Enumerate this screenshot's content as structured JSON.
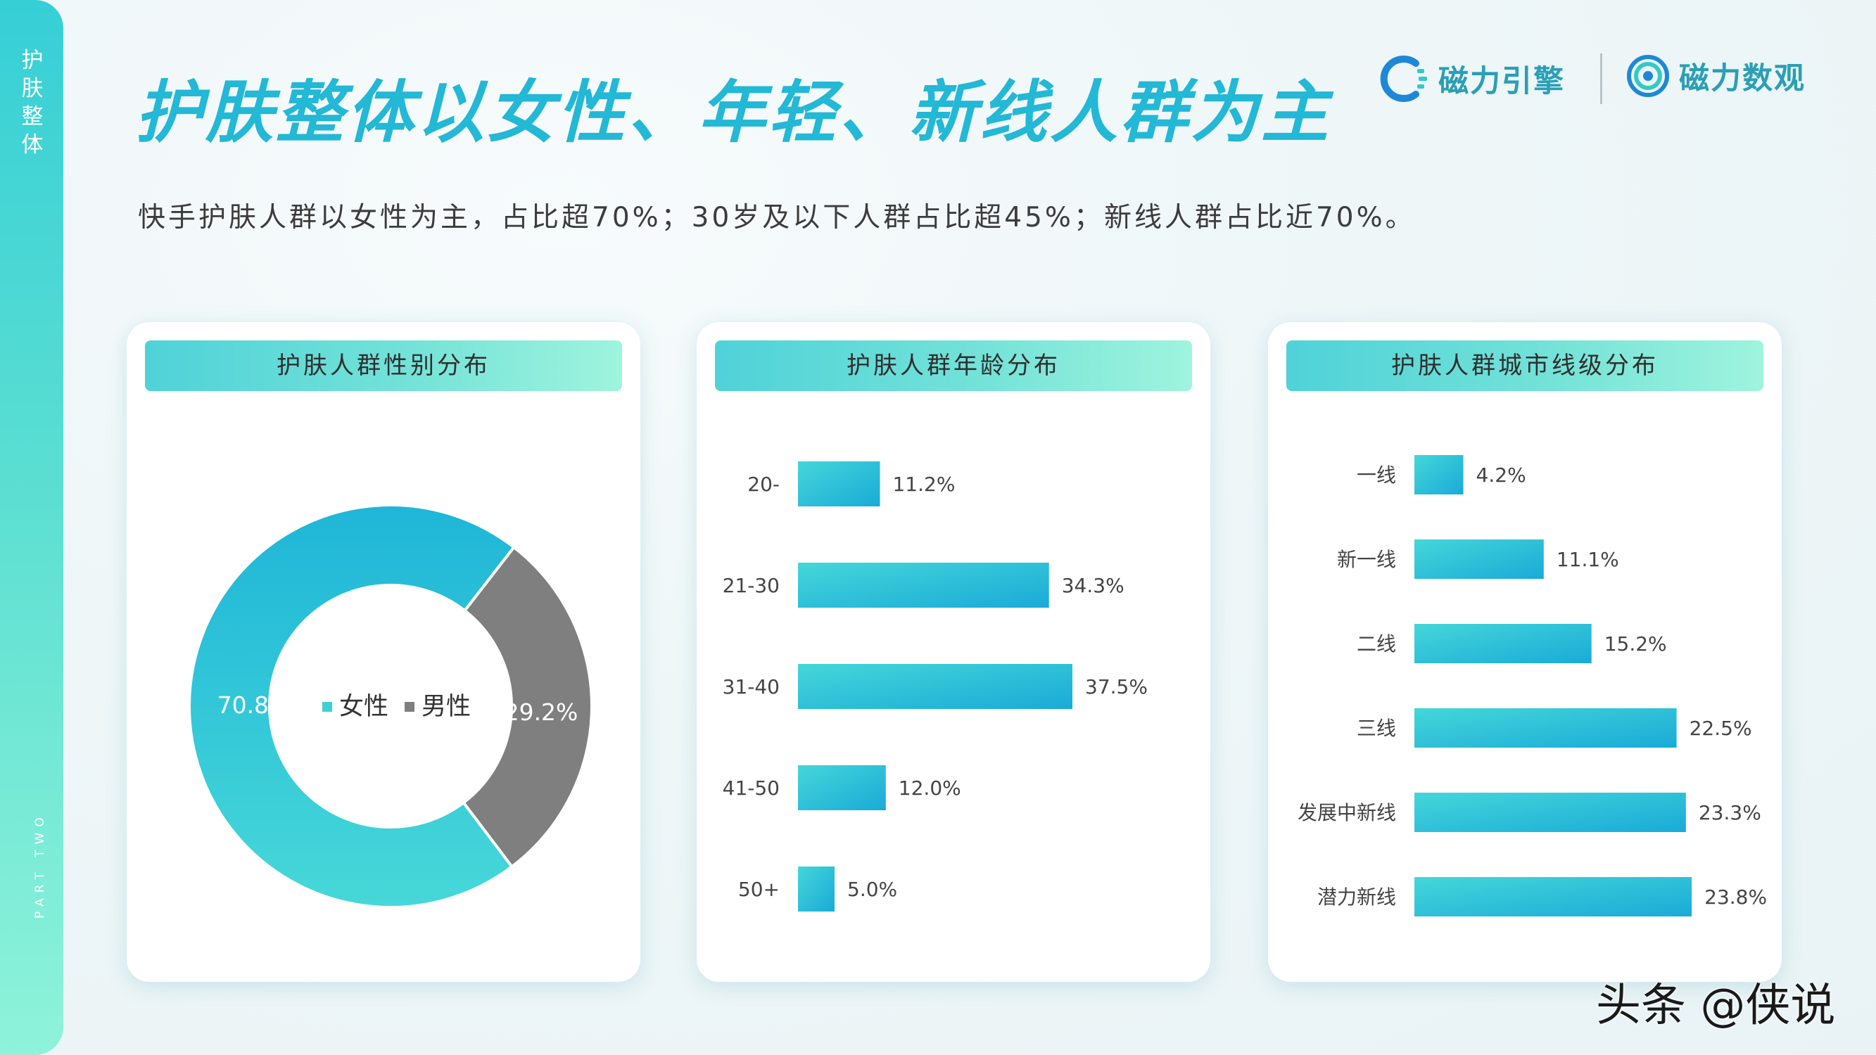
{
  "sidebar": {
    "section_title": "护肤整体",
    "part_label": "PART TWO"
  },
  "header": {
    "title": "护肤整体以女性、年轻、新线人群为主",
    "subtitle": "快手护肤人群以女性为主，占比超70%；30岁及以下人群占比超45%；新线人群占比近70%。"
  },
  "brands": {
    "brand1": "磁力引擎",
    "brand2": "磁力数观"
  },
  "colors": {
    "accent": "#22b8d6",
    "female": "#3fcfd6",
    "male": "#7f7f7f",
    "bar_start": "#44d7d9",
    "bar_end": "#1aaad8"
  },
  "watermark": "头条 @侠说",
  "chart_data": [
    {
      "type": "pie",
      "title": "护肤人群性别分布",
      "donut": true,
      "labels": [
        "女性",
        "男性"
      ],
      "values": [
        70.8,
        29.2
      ],
      "value_labels": [
        "70.8%",
        "29.2%"
      ],
      "legend": "center"
    },
    {
      "type": "bar",
      "orientation": "horizontal",
      "title": "护肤人群年龄分布",
      "categories": [
        "20-",
        "21-30",
        "31-40",
        "41-50",
        "50+"
      ],
      "values": [
        11.2,
        34.3,
        37.5,
        12.0,
        5.0
      ],
      "value_labels": [
        "11.2%",
        "34.3%",
        "37.5%",
        "12.0%",
        "5.0%"
      ],
      "xlim": [
        0,
        40
      ]
    },
    {
      "type": "bar",
      "orientation": "horizontal",
      "title": "护肤人群城市线级分布",
      "categories": [
        "一线",
        "新一线",
        "二线",
        "三线",
        "发展中新线",
        "潜力新线"
      ],
      "values": [
        4.2,
        11.1,
        15.2,
        22.5,
        23.3,
        23.8
      ],
      "value_labels": [
        "4.2%",
        "11.1%",
        "15.2%",
        "22.5%",
        "23.3%",
        "23.8%"
      ],
      "xlim": [
        0,
        25
      ]
    }
  ]
}
